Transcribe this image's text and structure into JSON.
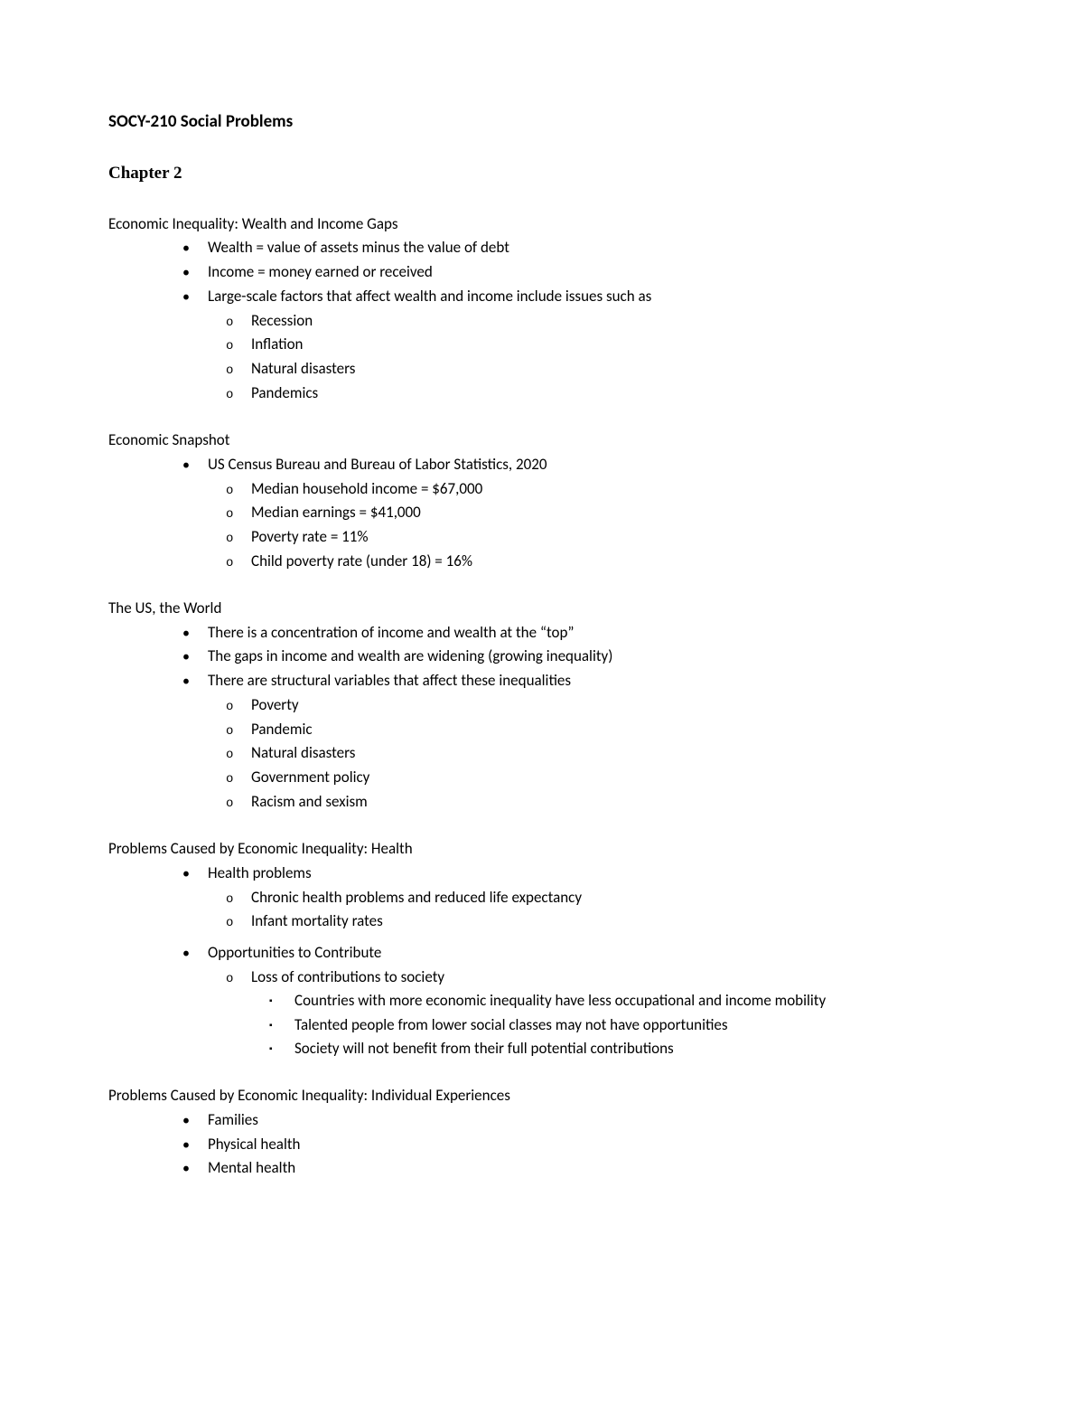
{
  "title": "SOCY-210 Social Problems",
  "chapter": "Chapter 2",
  "sections": [
    {
      "heading": "Economic Inequality: Wealth and Income Gaps",
      "bullets": [
        "Wealth = value of assets minus the value of debt",
        "Income = money earned or received",
        "Large-scale factors that affect wealth and income include issues such as"
      ],
      "sub_under_index": 2,
      "subs": [
        "Recession",
        "Inflation",
        "Natural disasters",
        "Pandemics"
      ]
    },
    {
      "heading": "Economic Snapshot",
      "bullets": [
        "US Census Bureau and Bureau of Labor Statistics, 2020"
      ],
      "sub_under_index": 0,
      "subs": [
        "Median household income = $67,000",
        "Median earnings = $41,000",
        "Poverty rate = 11%",
        "Child poverty rate (under 18) = 16%"
      ]
    },
    {
      "heading": "The US, the World",
      "bullets": [
        "There is a concentration of income and wealth at the “top”",
        "The gaps in income and wealth are widening (growing inequality)",
        "There are structural variables that affect these inequalities"
      ],
      "sub_under_index": 2,
      "subs": [
        "Poverty",
        "Pandemic",
        "Natural disasters",
        "Government policy",
        "Racism and sexism"
      ]
    }
  ],
  "health_section": {
    "heading": "Problems Caused by Economic Inequality: Health",
    "bullet1": "Health problems",
    "subs1": [
      "Chronic health problems and reduced life expectancy",
      "Infant mortality rates"
    ],
    "bullet2": "Opportunities to Contribute",
    "sub2": "Loss of contributions to society",
    "subsubs": [
      "Countries with more economic inequality have less occupational and income mobility",
      "Talented people from lower social classes may not have opportunities",
      "Society will not benefit from their full potential contributions"
    ]
  },
  "individual_section": {
    "heading": "Problems Caused by Economic Inequality: Individual Experiences",
    "bullets": [
      "Families",
      "Physical health",
      "Mental health"
    ]
  }
}
